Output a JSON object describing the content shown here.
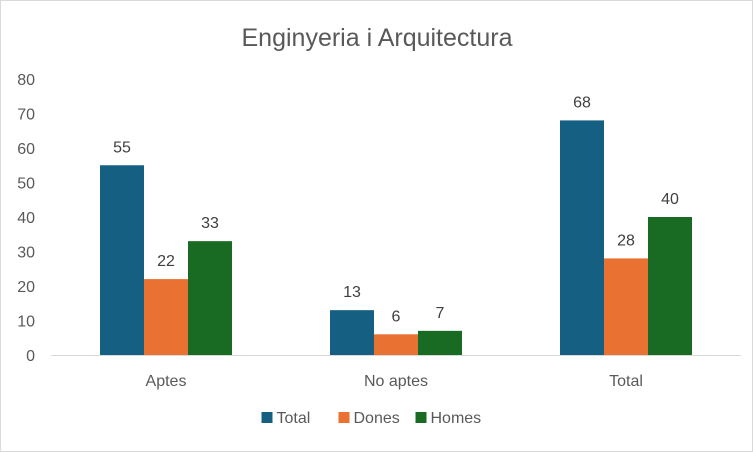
{
  "chart_data": {
    "type": "bar",
    "title": "Enginyeria i Arquitectura",
    "categories": [
      "Aptes",
      "No aptes",
      "Total"
    ],
    "series": [
      {
        "name": "Total",
        "values": [
          55,
          13,
          68
        ],
        "color": "#156082"
      },
      {
        "name": "Dones",
        "values": [
          22,
          6,
          28
        ],
        "color": "#E97132"
      },
      {
        "name": "Homes",
        "values": [
          33,
          7,
          40
        ],
        "color": "#196B24"
      }
    ],
    "ylim": [
      0,
      80
    ],
    "yticks": [
      "0",
      "10",
      "20",
      "30",
      "40",
      "50",
      "60",
      "70",
      "80"
    ],
    "grid": false,
    "legend": "bottom",
    "data_labels": true
  }
}
